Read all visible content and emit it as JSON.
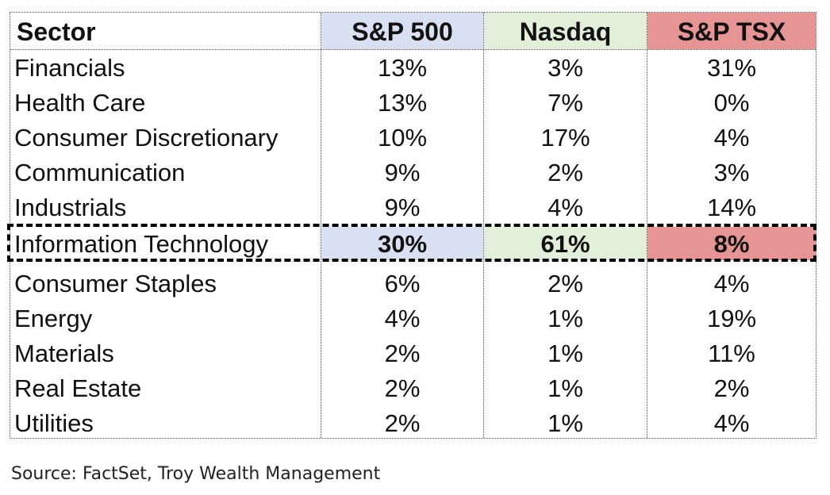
{
  "chart_data": {
    "type": "table",
    "columns": [
      "Sector",
      "S&P 500",
      "Nasdaq",
      "S&P TSX"
    ],
    "rows": [
      {
        "sector": "Financials",
        "sp500": "13%",
        "nasdaq": "3%",
        "tsx": "31%"
      },
      {
        "sector": "Health Care",
        "sp500": "13%",
        "nasdaq": "7%",
        "tsx": "0%"
      },
      {
        "sector": "Consumer Discretionary",
        "sp500": "10%",
        "nasdaq": "17%",
        "tsx": "4%"
      },
      {
        "sector": "Communication",
        "sp500": "9%",
        "nasdaq": "2%",
        "tsx": "3%"
      },
      {
        "sector": "Industrials",
        "sp500": "9%",
        "nasdaq": "4%",
        "tsx": "14%"
      },
      {
        "sector": "Information Technology",
        "sp500": "30%",
        "nasdaq": "61%",
        "tsx": "8%",
        "highlighted": true
      },
      {
        "sector": "Consumer Staples",
        "sp500": "6%",
        "nasdaq": "2%",
        "tsx": "4%"
      },
      {
        "sector": "Energy",
        "sp500": "4%",
        "nasdaq": "1%",
        "tsx": "19%"
      },
      {
        "sector": "Materials",
        "sp500": "2%",
        "nasdaq": "1%",
        "tsx": "11%"
      },
      {
        "sector": "Real Estate",
        "sp500": "2%",
        "nasdaq": "1%",
        "tsx": "2%"
      },
      {
        "sector": "Utilities",
        "sp500": "2%",
        "nasdaq": "1%",
        "tsx": "4%"
      }
    ],
    "header_colors": {
      "sp500": "#d9e0f1",
      "nasdaq": "#e2efd9",
      "tsx": "#e69494"
    },
    "highlight_border": "dashed"
  },
  "source": "Source: FactSet, Troy Wealth Management"
}
